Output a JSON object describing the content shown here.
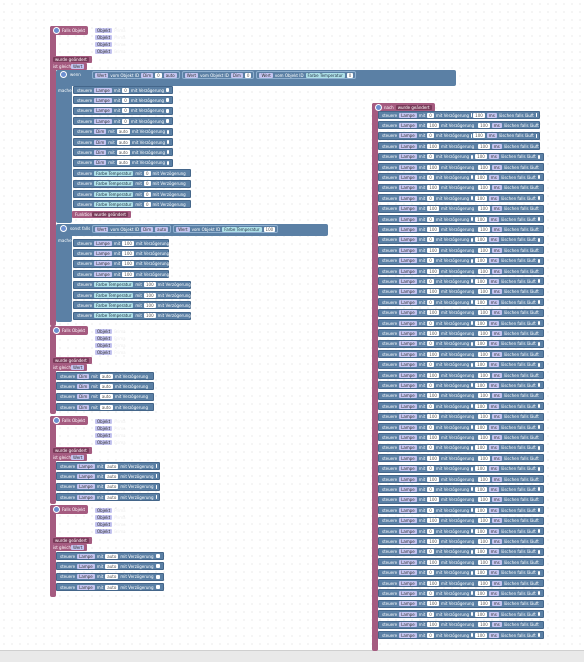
{
  "texts": {
    "falls_objekt": "Falls Objekt",
    "prima": "Prima",
    "objekt": "Objekt",
    "ist_gleich": "ist gleich",
    "aenderung": "wurde geändert",
    "wenn": "wenn",
    "sonst_falls": "sonst falls",
    "mache": "mache",
    "steuere": "steuere",
    "mit": "mit",
    "mit_verzoegerung": "mit Verzögerung",
    "wert": "Wert",
    "vom_objekt_id": "vom Objekt ID",
    "wert_von": "Wert",
    "state_lampe": "Lampe",
    "state_dim": "Dim",
    "state_farbe": "Farbe Temperatur",
    "auto": "auto",
    "val0": "0",
    "val100": "100",
    "ms": "ms",
    "loeschen": "löschen falls läuft",
    "funktion": "Funktion",
    "ms_unit": "ms",
    "nach": "nach"
  },
  "colors": {
    "event": "#a55b80",
    "control": "#5b80a5",
    "bg": "#ffffff"
  }
}
